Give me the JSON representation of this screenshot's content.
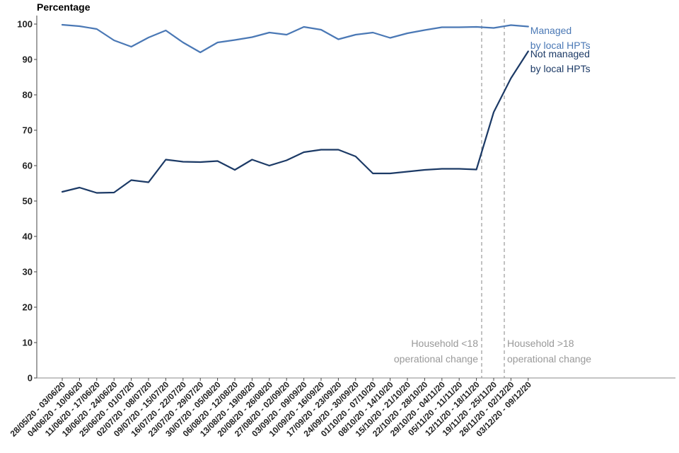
{
  "chart_data": {
    "type": "line",
    "title": "",
    "ylabel": "Percentage",
    "xlabel": "",
    "ylim": [
      0,
      100
    ],
    "yticks": [
      0,
      10,
      20,
      30,
      40,
      50,
      60,
      70,
      80,
      90,
      100
    ],
    "grid": false,
    "categories": [
      "28/05/20 - 03/06/20",
      "04/06/20 - 10/06/20",
      "11/06/20 - 17/06/20",
      "18/06/20 - 24/06/20",
      "25/06/20 - 01/07/20",
      "02/07/20 - 08/07/20",
      "09/07/20 - 15/07/20",
      "16/07/20 - 22/07/20",
      "23/07/20 - 29/07/20",
      "30/07/20 - 05/08/20",
      "06/08/20 - 12/08/20",
      "13/08/20 - 19/08/20",
      "20/08/20 - 26/08/20",
      "27/08/20 - 02/09/20",
      "03/09/20 - 09/09/20",
      "10/09/20 - 16/09/20",
      "17/09/20 - 23/09/20",
      "24/09/20 - 30/09/20",
      "01/10/20 - 07/10/20",
      "08/10/20 - 14/10/20",
      "15/10/20 - 21/10/20",
      "22/10/20 - 28/10/20",
      "29/10/20 - 04/11/20",
      "05/11/20 - 11/11/20",
      "12/11/20 - 18/11/20",
      "19/11/20 - 25/11/20",
      "26/11/20 - 02/12/20",
      "03/12/20 - 09/12/20"
    ],
    "series": [
      {
        "name": "Managed by local HPTs",
        "label_lines": [
          "Managed",
          "by local HPTs"
        ],
        "color": "#4a78b5",
        "values": [
          99.8,
          99.4,
          98.6,
          95.4,
          93.6,
          96.2,
          98.2,
          94.8,
          92.0,
          94.8,
          95.5,
          96.3,
          97.6,
          97.0,
          99.2,
          98.4,
          95.7,
          97.0,
          97.6,
          96.1,
          97.4,
          98.3,
          99.1,
          99.1,
          99.2,
          98.9,
          99.7,
          99.3
        ]
      },
      {
        "name": "Not managed by local HPTs",
        "label_lines": [
          "Not managed",
          "by local HPTs"
        ],
        "color": "#1c3a66",
        "values": [
          52.6,
          53.8,
          52.3,
          52.4,
          55.9,
          55.3,
          61.7,
          61.1,
          61.0,
          61.3,
          58.8,
          61.7,
          60.0,
          61.5,
          63.8,
          64.5,
          64.5,
          62.6,
          57.8,
          57.8,
          58.3,
          58.8,
          59.1,
          59.1,
          58.9,
          75.1,
          84.7,
          92.3
        ]
      }
    ],
    "annotations": [
      {
        "after_index": 24,
        "lines": [
          "Household <18",
          "operational change"
        ],
        "align": "left-of-line"
      },
      {
        "after_index": 25,
        "lines": [
          "Household >18",
          "operational change"
        ],
        "align": "right-of-line"
      }
    ]
  }
}
